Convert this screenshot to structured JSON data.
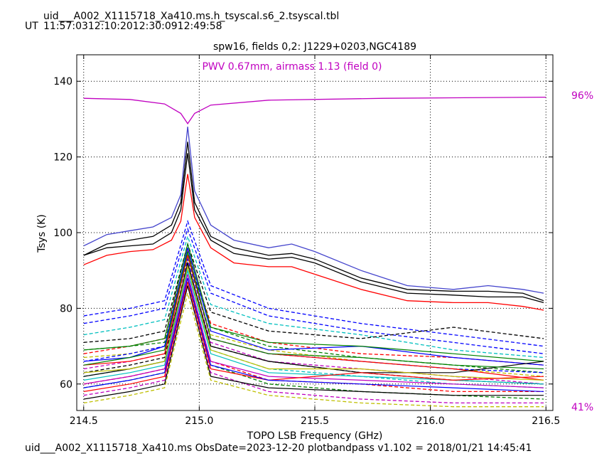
{
  "header": {
    "title": "uid___A002_X1115718_Xa410.ms.h_tsyscal.s6_2.tsyscal.tbl",
    "ut_label": "UT",
    "ut_times": [
      "11:57:03",
      "12:10:20",
      "12:30:09",
      "12:49:58"
    ]
  },
  "footer": {
    "text": "uid___A002_X1115718_Xa410.ms  ObsDate=2023-12-20   plotbandpass v1.102 = 2018/01/21 14:45:41"
  },
  "colors": {
    "pwv": "#c000c0",
    "axes": "#000000",
    "palette": [
      "#0000ff",
      "#ff0000",
      "#008000",
      "#00bfbf",
      "#bf00bf",
      "#bfbf00",
      "#000000",
      "#00ff00",
      "#ffa500",
      "#4b0082"
    ]
  },
  "chart_data": {
    "type": "line",
    "title": "spw16,  fields 0,2: J1229+0203,NGC4189",
    "annotation": "PWV 0.67mm, airmass 1.13 (field 0)",
    "xlabel": "TOPO LSB Frequency (GHz)",
    "ylabel": "Tsys (K)",
    "xlim": [
      214.47,
      216.53
    ],
    "ylim": [
      53,
      147
    ],
    "xticks": [
      214.5,
      215.0,
      215.5,
      216.0,
      216.5
    ],
    "xtick_labels": [
      "214.5",
      "215.0",
      "215.5",
      "216.0",
      "216.5"
    ],
    "yticks": [
      60,
      80,
      100,
      120,
      140
    ],
    "ytick_labels": [
      "60",
      "80",
      "100",
      "120",
      "140"
    ],
    "grid": true,
    "transmission_axis": {
      "top_label": "96%",
      "bottom_label": "41%"
    },
    "atmospheric_transmission": {
      "x": [
        214.5,
        214.7,
        214.85,
        214.92,
        214.95,
        214.98,
        215.05,
        215.3,
        215.8,
        216.5
      ],
      "y": [
        135.5,
        135.2,
        134.0,
        131.5,
        128.8,
        131.5,
        133.7,
        135.0,
        135.5,
        135.8
      ]
    },
    "solid_series": [
      {
        "color": "#4444cc",
        "x": [
          214.5,
          214.6,
          214.7,
          214.8,
          214.88,
          214.92,
          214.95,
          214.98,
          215.05,
          215.15,
          215.3,
          215.4,
          215.5,
          215.7,
          215.9,
          216.1,
          216.25,
          216.4,
          216.49
        ],
        "y": [
          96.5,
          99.5,
          100.5,
          101.5,
          104,
          110,
          128,
          111,
          102,
          98,
          96,
          97,
          95,
          90,
          86,
          85,
          86,
          85,
          84
        ]
      },
      {
        "color": "#000000",
        "x": [
          214.5,
          214.6,
          214.7,
          214.8,
          214.88,
          214.92,
          214.95,
          214.98,
          215.05,
          215.15,
          215.3,
          215.4,
          215.5,
          215.7,
          215.9,
          216.1,
          216.25,
          216.4,
          216.49
        ],
        "y": [
          94,
          97,
          98,
          99,
          102,
          108,
          124,
          108,
          99,
          96,
          94,
          94.5,
          93,
          88,
          85,
          84.5,
          84.5,
          84,
          82
        ]
      },
      {
        "color": "#000000",
        "x": [
          214.5,
          214.6,
          214.7,
          214.8,
          214.88,
          214.92,
          214.95,
          214.98,
          215.05,
          215.15,
          215.3,
          215.4,
          215.5,
          215.7,
          215.9,
          216.1,
          216.25,
          216.4,
          216.49
        ],
        "y": [
          94,
          96,
          96.5,
          97,
          100,
          106,
          121,
          106,
          98,
          94.5,
          93,
          93.5,
          92,
          87,
          84,
          83.5,
          83,
          83,
          81.5
        ]
      },
      {
        "color": "#ff0000",
        "x": [
          214.5,
          214.6,
          214.7,
          214.8,
          214.88,
          214.92,
          214.95,
          214.98,
          215.05,
          215.15,
          215.3,
          215.4,
          215.5,
          215.7,
          215.9,
          216.1,
          216.25,
          216.4,
          216.49
        ],
        "y": [
          91.5,
          94,
          95,
          95.5,
          98,
          103,
          115.5,
          104,
          96,
          92,
          91,
          91,
          89,
          85,
          82,
          81.5,
          81.5,
          80.5,
          79.5
        ]
      }
    ],
    "dashed_series": [
      {
        "color": "#0000ff",
        "x": [
          214.5,
          214.7,
          214.85,
          214.95,
          215.05,
          215.3,
          215.7,
          216.1,
          216.49
        ],
        "y": [
          78,
          80,
          82,
          103,
          86,
          80,
          76,
          73,
          70
        ]
      },
      {
        "color": "#0000ff",
        "x": [
          214.5,
          214.7,
          214.85,
          214.95,
          215.05,
          215.3,
          215.7,
          216.1,
          216.49
        ],
        "y": [
          76,
          78,
          80,
          101,
          84,
          78,
          74,
          71,
          68
        ]
      },
      {
        "color": "#00bfbf",
        "x": [
          214.5,
          214.7,
          214.85,
          214.95,
          215.05,
          215.3,
          215.7,
          216.1,
          216.49
        ],
        "y": [
          73,
          75,
          77,
          99,
          81,
          76,
          73,
          69,
          67
        ]
      },
      {
        "color": "#000000",
        "x": [
          214.5,
          214.7,
          214.85,
          214.95,
          215.05,
          215.3,
          215.7,
          216.1,
          216.49
        ],
        "y": [
          71,
          72,
          74,
          97,
          79,
          74,
          72,
          75,
          72
        ]
      },
      {
        "color": "#ff0000",
        "x": [
          214.5,
          214.7,
          214.85,
          214.95,
          215.05,
          215.3,
          215.7,
          216.1,
          216.49
        ],
        "y": [
          68,
          70,
          72,
          95,
          76,
          71,
          68,
          67,
          65
        ]
      },
      {
        "color": "#008000",
        "x": [
          214.5,
          214.7,
          214.85,
          214.95,
          215.05,
          215.3,
          215.7,
          216.1,
          216.49
        ],
        "y": [
          69,
          70,
          71,
          94,
          75,
          70,
          67,
          65,
          63
        ]
      },
      {
        "color": "#bfbf00",
        "x": [
          214.5,
          214.7,
          214.85,
          214.95,
          215.05,
          215.3,
          215.7,
          216.1,
          216.49
        ],
        "y": [
          67,
          68,
          70,
          93,
          73,
          69,
          66,
          64,
          62
        ]
      },
      {
        "color": "#bf00bf",
        "x": [
          214.5,
          214.7,
          214.85,
          214.95,
          215.05,
          215.3,
          215.7,
          216.1,
          216.49
        ],
        "y": [
          64,
          66,
          68,
          91,
          71,
          66,
          64,
          62,
          60
        ]
      },
      {
        "color": "#00bfbf",
        "x": [
          214.5,
          214.7,
          214.85,
          214.95,
          215.05,
          215.3,
          215.7,
          216.1,
          216.49
        ],
        "y": [
          62,
          64,
          66,
          90,
          69,
          64,
          62,
          60,
          59
        ]
      },
      {
        "color": "#000000",
        "x": [
          214.5,
          214.7,
          214.85,
          214.95,
          215.05,
          215.3,
          215.7,
          216.1,
          216.49
        ],
        "y": [
          63,
          65,
          67,
          92,
          70,
          66,
          63,
          61,
          60
        ]
      },
      {
        "color": "#ff0000",
        "x": [
          214.5,
          214.7,
          214.85,
          214.95,
          215.05,
          215.3,
          215.7,
          216.1,
          216.49
        ],
        "y": [
          60,
          62,
          64,
          88,
          66,
          61,
          60,
          58,
          58
        ]
      },
      {
        "color": "#008000",
        "x": [
          214.5,
          214.7,
          214.85,
          214.95,
          215.05,
          215.3,
          215.7,
          216.1,
          216.49
        ],
        "y": [
          59,
          61,
          63,
          87,
          65,
          60,
          58,
          57,
          56
        ]
      },
      {
        "color": "#bf00bf",
        "x": [
          214.5,
          214.7,
          214.85,
          214.95,
          215.05,
          215.3,
          215.7,
          216.1,
          216.49
        ],
        "y": [
          57,
          59,
          61,
          86,
          63,
          58,
          56,
          55,
          55
        ]
      },
      {
        "color": "#bfbf00",
        "x": [
          214.5,
          214.7,
          214.85,
          214.95,
          215.05,
          215.3,
          215.7,
          216.1,
          216.49
        ],
        "y": [
          55,
          57,
          59,
          84,
          61,
          57,
          55,
          54,
          54
        ]
      },
      {
        "color": "#0000ff",
        "x": [
          214.5,
          214.7,
          214.85,
          214.95,
          215.05,
          215.3,
          215.7,
          216.1,
          216.49
        ],
        "y": [
          66,
          68,
          70,
          93,
          72,
          68,
          66,
          64,
          63
        ]
      }
    ],
    "thin_solid_series": [
      {
        "color": "#0000ff",
        "x": [
          214.5,
          214.7,
          214.85,
          214.95,
          215.05,
          215.3,
          215.7,
          216.1,
          216.49
        ],
        "y": [
          66,
          67,
          70,
          96,
          74,
          69,
          70,
          67,
          65
        ]
      },
      {
        "color": "#ff0000",
        "x": [
          214.5,
          214.7,
          214.85,
          214.95,
          215.05,
          215.3,
          215.7,
          216.1,
          216.49
        ],
        "y": [
          65,
          66,
          68,
          94,
          72,
          68,
          66,
          64,
          61
        ]
      },
      {
        "color": "#008000",
        "x": [
          214.5,
          214.7,
          214.85,
          214.95,
          215.05,
          215.3,
          215.7,
          216.1,
          216.49
        ],
        "y": [
          69,
          70,
          72,
          97,
          75,
          71,
          70,
          68,
          66
        ]
      },
      {
        "color": "#000000",
        "x": [
          214.5,
          214.7,
          214.85,
          214.95,
          215.05,
          215.3,
          215.7,
          216.1,
          216.49
        ],
        "y": [
          62,
          64,
          66,
          92,
          70,
          66,
          63,
          63,
          66
        ]
      },
      {
        "color": "#bfbf00",
        "x": [
          214.5,
          214.7,
          214.85,
          214.95,
          215.05,
          215.3,
          215.7,
          216.1,
          216.49
        ],
        "y": [
          63,
          64,
          66,
          91,
          69,
          64,
          64,
          62,
          61
        ]
      },
      {
        "color": "#00bfbf",
        "x": [
          214.5,
          214.7,
          214.85,
          214.95,
          215.05,
          215.3,
          215.7,
          216.1,
          216.49
        ],
        "y": [
          61,
          63,
          65,
          90,
          68,
          63,
          62,
          61,
          60
        ]
      },
      {
        "color": "#bf00bf",
        "x": [
          214.5,
          214.7,
          214.85,
          214.95,
          215.05,
          215.3,
          215.7,
          216.1,
          216.49
        ],
        "y": [
          60,
          62,
          64,
          89,
          66,
          62,
          61,
          60,
          59
        ]
      },
      {
        "color": "#ff0000",
        "x": [
          214.5,
          214.7,
          214.85,
          214.95,
          215.05,
          215.3,
          215.7,
          216.1,
          216.49
        ],
        "y": [
          58,
          60,
          62,
          87,
          64,
          61,
          63,
          61,
          62
        ]
      },
      {
        "color": "#0000ff",
        "x": [
          214.5,
          214.7,
          214.85,
          214.95,
          215.05,
          215.3,
          215.7,
          216.1,
          216.49
        ],
        "y": [
          59,
          61,
          63,
          88,
          65,
          61,
          60,
          59,
          58
        ]
      },
      {
        "color": "#000000",
        "x": [
          214.5,
          214.7,
          214.85,
          214.95,
          215.05,
          215.3,
          215.7,
          216.1,
          216.49
        ],
        "y": [
          56,
          58,
          60,
          86,
          62,
          59,
          58,
          57,
          57
        ]
      },
      {
        "color": "#008000",
        "x": [
          214.5,
          214.7,
          214.85,
          214.95,
          215.05,
          215.3,
          215.7,
          216.1,
          216.49
        ],
        "y": [
          65,
          67,
          69,
          95,
          72,
          68,
          67,
          65,
          64
        ]
      }
    ]
  }
}
